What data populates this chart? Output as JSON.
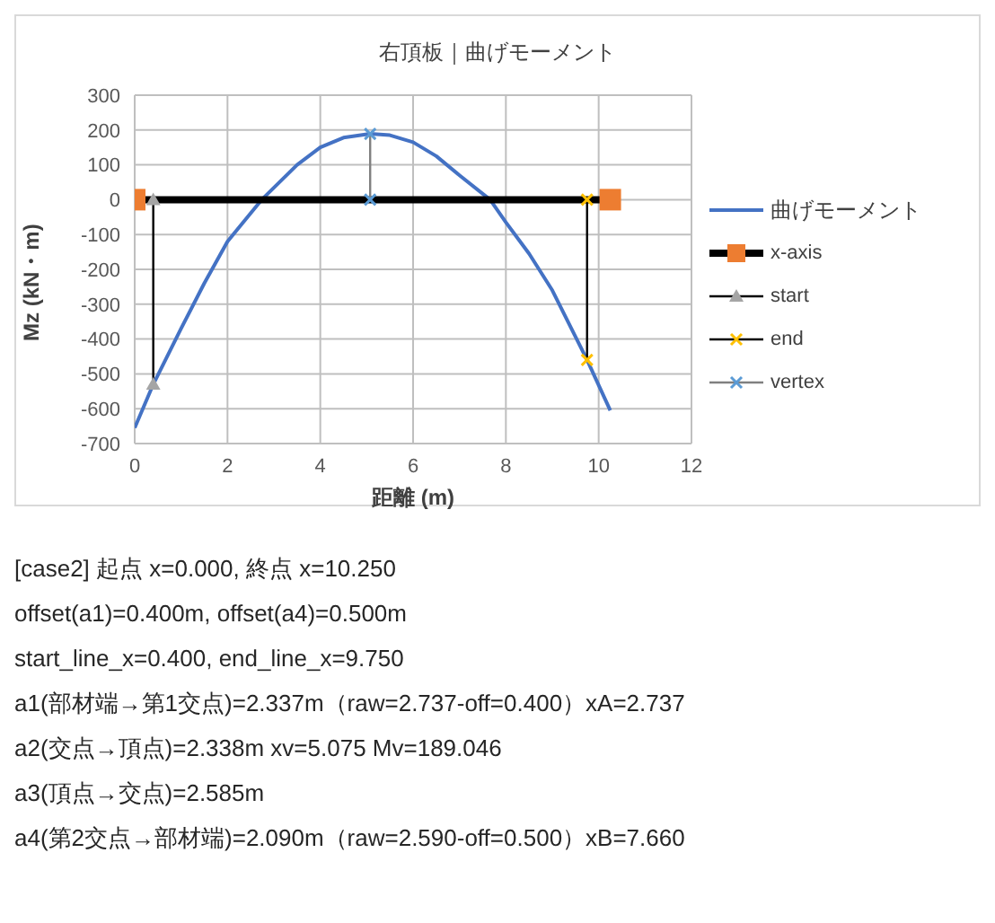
{
  "chart_data": {
    "type": "line",
    "title": "右頂板｜曲げモーメント",
    "xlabel": "距離 (m)",
    "ylabel": "Mz (kN・m)",
    "xlim": [
      0,
      12
    ],
    "xticks": [
      0,
      2,
      4,
      6,
      8,
      10,
      12
    ],
    "ylim": [
      -700,
      300
    ],
    "yticks": [
      -700,
      -600,
      -500,
      -400,
      -300,
      -200,
      -100,
      0,
      100,
      200,
      300
    ],
    "grid": true,
    "legend": "right",
    "series": [
      {
        "name": "曲げモーメント",
        "color": "#4472c4",
        "marker": "none",
        "x": [
          0,
          0.4,
          1,
          1.5,
          2,
          2.737,
          3.5,
          4,
          4.5,
          5.075,
          5.5,
          6,
          6.5,
          7,
          7.66,
          8,
          8.5,
          9,
          9.75,
          10.25
        ],
        "values": [
          -655,
          -530,
          -370,
          -240,
          -120,
          0,
          100,
          150,
          178,
          189,
          185,
          165,
          125,
          70,
          0,
          -65,
          -155,
          -260,
          -460,
          -605
        ]
      },
      {
        "name": "x-axis",
        "color": "#000000",
        "marker": "square",
        "colors": [
          "#ed7d31",
          "#ed7d31"
        ],
        "x": [
          0,
          10.25
        ],
        "values": [
          0,
          0
        ]
      },
      {
        "name": "start",
        "color": "#000000",
        "marker": "triangle",
        "colors": [
          "#a5a5a5",
          "#a5a5a5"
        ],
        "x": [
          0.4,
          0.4
        ],
        "values": [
          0,
          -530
        ]
      },
      {
        "name": "end",
        "color": "#000000",
        "marker": "cross",
        "colors": [
          "#ffc000",
          "#ffc000"
        ],
        "x": [
          9.75,
          9.75
        ],
        "values": [
          0,
          -460
        ]
      },
      {
        "name": "vertex",
        "color": "#808080",
        "marker": "cross",
        "colors": [
          "#5b9bd5",
          "#5b9bd5"
        ],
        "x": [
          5.075,
          5.075
        ],
        "values": [
          0,
          189
        ]
      }
    ],
    "annotations": [
      "[case2] 起点 x=0.000, 終点 x=10.250",
      "offset(a1)=0.400m, offset(a4)=0.500m",
      "start_line_x=0.400, end_line_x=9.750",
      "a1(部材端→第1交点)=2.337m（raw=2.737-off=0.400）xA=2.737",
      "a2(交点→頂点)=2.338m  xv=5.075  Mv=189.046",
      "a3(頂点→交点)=2.585m",
      "a4(第2交点→部材端)=2.090m（raw=2.590-off=0.500）xB=7.660"
    ]
  }
}
